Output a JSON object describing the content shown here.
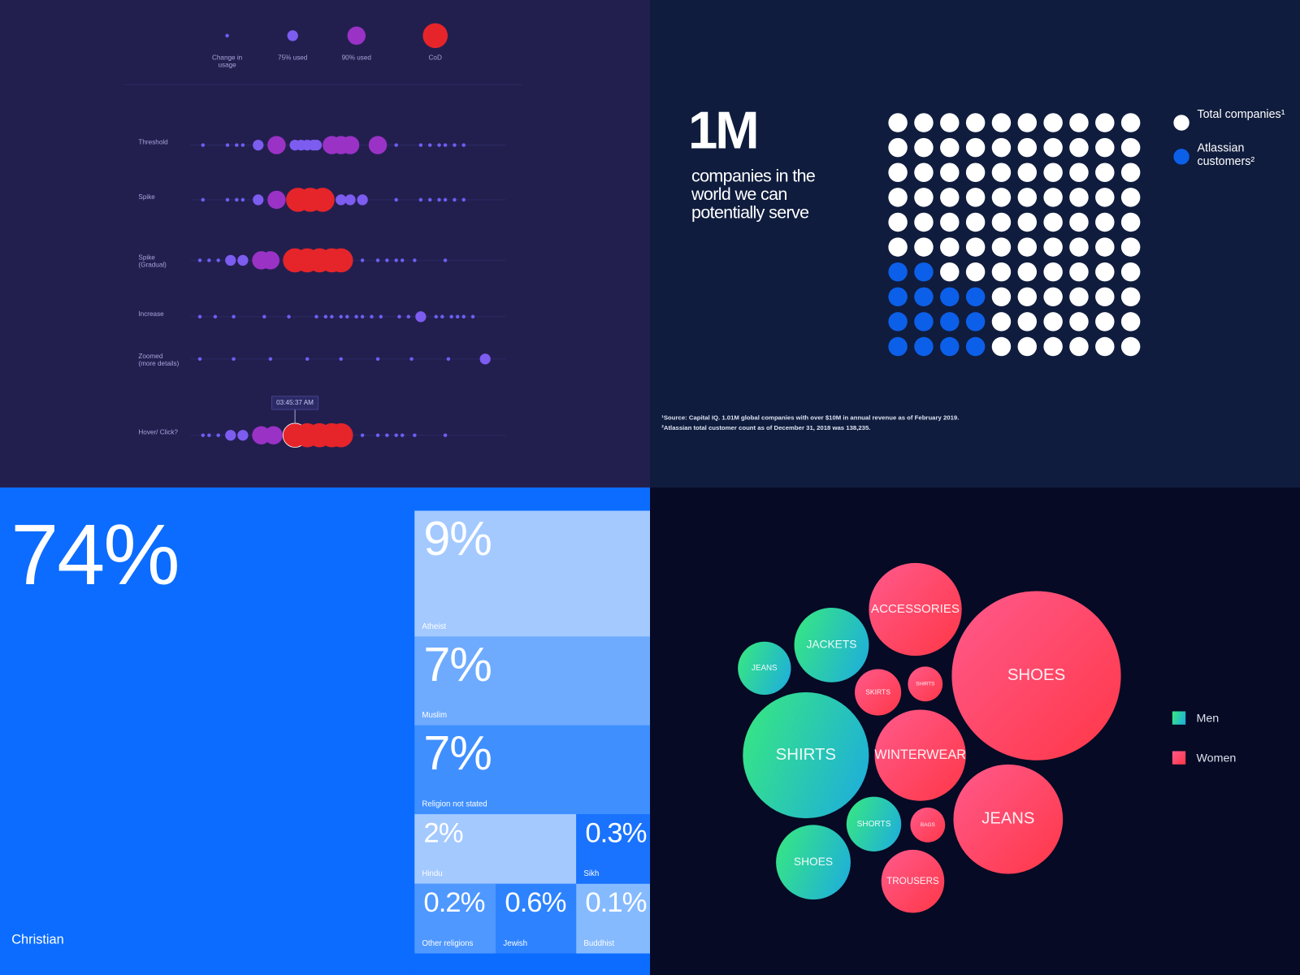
{
  "chart_data": [
    {
      "type": "dots",
      "legend": [
        {
          "name": "Change in usage",
          "color": "#6c5ff2"
        },
        {
          "name": "75% used",
          "color": "#7d5cf0"
        },
        {
          "name": "90% used",
          "color": "#9a32c6"
        },
        {
          "name": "CoD",
          "color": "#e5252a"
        }
      ],
      "xlim": [
        0,
        100
      ],
      "rows": [
        {
          "name": "Threshold",
          "x": [
            4,
            12,
            15,
            17,
            22,
            28,
            34,
            36,
            38,
            40,
            41,
            46,
            49,
            52,
            61,
            67,
            75,
            78,
            81,
            83,
            86,
            89
          ],
          "levels": [
            0,
            0,
            0,
            0,
            1,
            2,
            1,
            1,
            1,
            1,
            1,
            2,
            2,
            2,
            2,
            0,
            0,
            0,
            0,
            0,
            0,
            0
          ]
        },
        {
          "name": "Spike",
          "x": [
            4,
            12,
            15,
            17,
            22,
            28,
            35,
            39,
            43,
            49,
            52,
            56,
            67,
            75,
            78,
            81,
            83,
            86,
            89
          ],
          "levels": [
            0,
            0,
            0,
            0,
            1,
            2,
            3,
            3,
            3,
            1,
            1,
            1,
            0,
            0,
            0,
            0,
            0,
            0,
            0
          ]
        },
        {
          "name": "Spike (Gradual)",
          "x": [
            3,
            6,
            9,
            13,
            17,
            23,
            26,
            34,
            38,
            42,
            46,
            49,
            56,
            61,
            64,
            67,
            69,
            73,
            83
          ],
          "levels": [
            0,
            0,
            0,
            1,
            1,
            2,
            2,
            3,
            3,
            3,
            3,
            3,
            0,
            0,
            0,
            0,
            0,
            0,
            0
          ]
        },
        {
          "name": "Increase",
          "x": [
            3,
            8,
            14,
            24,
            32,
            41,
            44,
            46,
            49,
            51,
            54,
            56,
            59,
            62,
            68,
            71,
            75,
            80,
            82,
            85,
            87,
            89,
            92
          ],
          "levels": [
            0,
            0,
            0,
            0,
            0,
            0,
            0,
            0,
            0,
            0,
            0,
            0,
            0,
            0,
            0,
            0,
            1,
            0,
            0,
            0,
            0,
            0,
            0
          ]
        },
        {
          "name": "Zoomed (more details)",
          "x": [
            3,
            14,
            26,
            38,
            49,
            61,
            72,
            84,
            96
          ],
          "levels": [
            0,
            0,
            0,
            0,
            0,
            0,
            0,
            0,
            1
          ]
        },
        {
          "name": "Hover/ Click?",
          "x": [
            4,
            6,
            9,
            13,
            17,
            23,
            27,
            34,
            38,
            42,
            46,
            49,
            56,
            61,
            64,
            67,
            69,
            73,
            83
          ],
          "levels": [
            0,
            0,
            0,
            1,
            1,
            2,
            2,
            3,
            3,
            3,
            3,
            3,
            0,
            0,
            0,
            0,
            0,
            0,
            0
          ],
          "highlight": 7,
          "tooltip": "03:45:37 AM"
        }
      ]
    },
    {
      "type": "waffle",
      "title": "1M",
      "subtitle": "companies in the world we can potentially serve",
      "series": [
        {
          "name": "Total companies¹",
          "color": "#ffffff",
          "values": [
            100
          ]
        },
        {
          "name": "Atlassian customers²",
          "color": "#0c5fe8",
          "values": [
            14
          ]
        }
      ],
      "notes": [
        "¹Source: Capital IQ. 1.01M global companies with over $10M in annual revenue as of February 2019.",
        "²Atlassian total customer count as of December 31, 2018 was 138,235."
      ]
    },
    {
      "type": "treemap",
      "categories": [
        "Christian",
        "Atheist",
        "Muslim",
        "Religion not stated",
        "Hindu",
        "Sikh",
        "Other religions",
        "Jewish",
        "Buddhist"
      ],
      "values": [
        74,
        9,
        7,
        7,
        2,
        0.3,
        0.2,
        0.6,
        0.1
      ],
      "value_labels": [
        "74%",
        "9%",
        "7%",
        "7%",
        "2%",
        "0.3%",
        "0.2%",
        "0.6%",
        "0.1%"
      ],
      "colors": [
        "#0b6cff",
        "#a3c9ff",
        "#6eabff",
        "#3f8fff",
        "#a3c9ff",
        "#1a73ff",
        "#4f98ff",
        "#2d82ff",
        "#85baff"
      ]
    },
    {
      "type": "bubble",
      "series": [
        {
          "name": "Men",
          "gradient": [
            "#36e486",
            "#1fb0d8"
          ],
          "categories": [
            "JEANS",
            "JACKETS",
            "SHIRTS",
            "SHORTS",
            "SHOES"
          ],
          "values": [
            32,
            45,
            76,
            33,
            45
          ]
        },
        {
          "name": "Women",
          "gradient": [
            "#ff5a8c",
            "#ff3747"
          ],
          "categories": [
            "ACCESSORIES",
            "SHOES",
            "SKIRTS",
            "SHIRTS",
            "WINTERWEAR",
            "JEANS",
            "BAGS",
            "TROUSERS"
          ],
          "values": [
            56,
            102,
            28,
            21,
            55,
            66,
            21,
            38
          ]
        }
      ]
    }
  ]
}
